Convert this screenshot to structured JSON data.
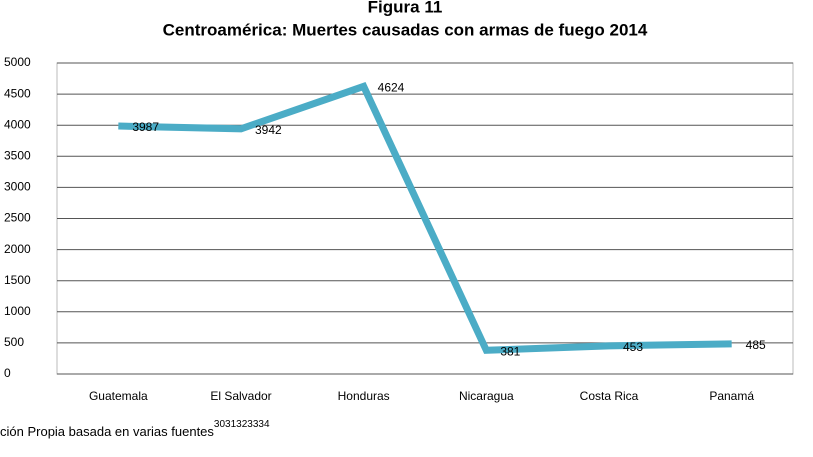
{
  "chart_data": {
    "type": "line",
    "supertitle": "Figura 11",
    "title": "Centroamérica: Muertes causadas con armas de fuego 2014",
    "categories": [
      "Guatemala",
      "El Salvador",
      "Honduras",
      "Nicaragua",
      "Costa Rica",
      "Panamá"
    ],
    "series": [
      {
        "color": "#4bacc6",
        "values": [
          3987,
          3942,
          4624,
          381,
          453,
          485
        ]
      }
    ],
    "ylim": [
      0,
      5000
    ],
    "yticks": [
      0,
      500,
      1000,
      1500,
      2000,
      2500,
      3000,
      3500,
      4000,
      4500,
      5000
    ],
    "grid": true,
    "source": "ción Propia basada en varias fuentes",
    "source_note": "3031323334"
  }
}
